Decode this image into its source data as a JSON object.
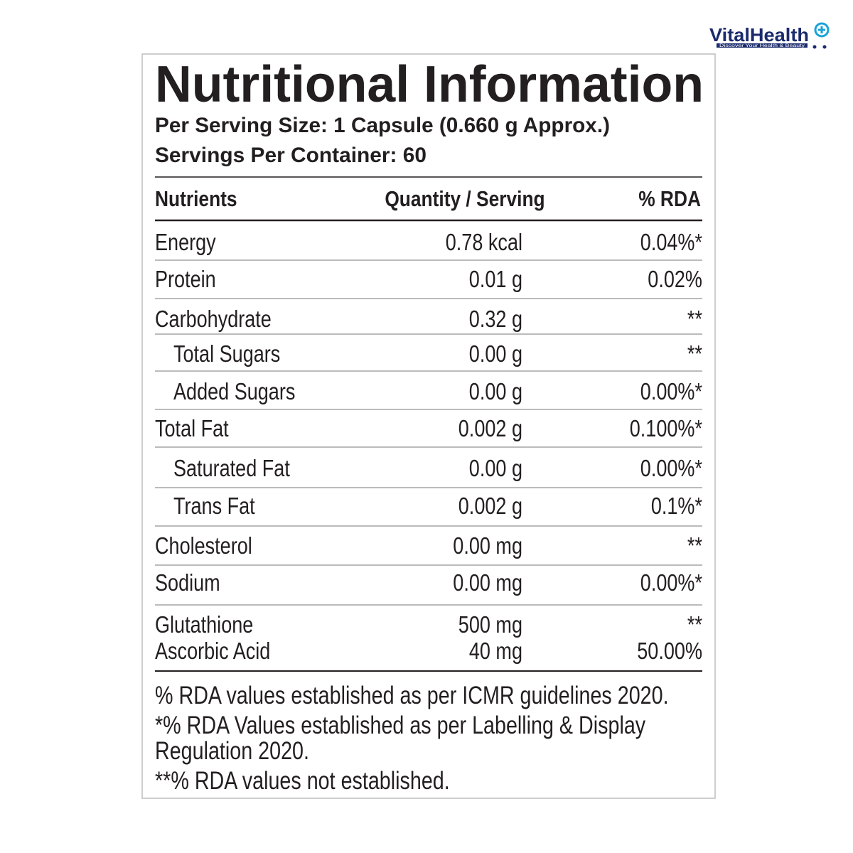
{
  "logo": {
    "name": "VitalHealth",
    "tagline": "Discover Your Health & Beauty"
  },
  "header": {
    "title": "Nutritional Information",
    "serving_size": "Per Serving Size: 1 Capsule (0.660 g Approx.)",
    "servings_per_container": "Servings Per Container: 60"
  },
  "table": {
    "columns": [
      "Nutrients",
      "Quantity / Serving",
      "% RDA"
    ],
    "rows": [
      [
        "Energy",
        "0.78 kcal",
        "0.04%*"
      ],
      [
        "Protein",
        "0.01 g",
        "0.02%"
      ],
      [
        "Carbohydrate",
        "0.32 g",
        "**"
      ],
      [
        "Total Sugars",
        "0.00 g",
        "**"
      ],
      [
        "Added Sugars",
        "0.00 g",
        "0.00%*"
      ],
      [
        "Total Fat",
        "0.002 g",
        "0.100%*"
      ],
      [
        "Saturated Fat",
        "0.00 g",
        "0.00%*"
      ],
      [
        "Trans Fat",
        "0.002 g",
        "0.1%*"
      ],
      [
        "Cholesterol",
        "0.00 mg",
        "**"
      ],
      [
        "Sodium",
        "0.00 mg",
        "0.00%*"
      ],
      [
        "Glutathione",
        "500 mg",
        "**"
      ],
      [
        "Ascorbic Acid",
        "40 mg",
        "50.00%"
      ]
    ]
  },
  "footnotes": [
    "% RDA values established as per ICMR guidelines 2020.",
    "*% RDA Values established as per Labelling & Display",
    "Regulation 2020.",
    "**% RDA values not established."
  ]
}
